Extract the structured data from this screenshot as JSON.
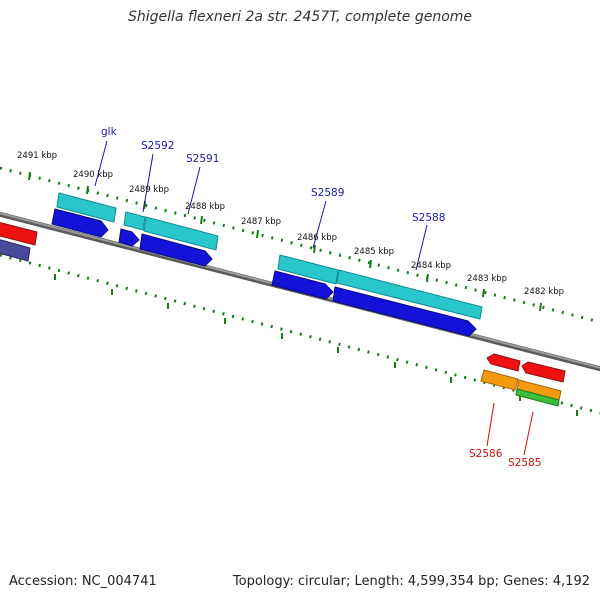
{
  "title": "Shigella flexneri 2a str. 2457T, complete genome",
  "footer": {
    "accession": "Accession: NC_004741",
    "summary": "Topology: circular; Length: 4,599,354 bp; Genes: 4,192"
  },
  "colors": {
    "backbone": "#8c8c8c",
    "tick": "#1a7a1a",
    "cyan": "#29c6cc",
    "blue": "#1212d8",
    "red": "#ee1111",
    "orange": "#f39a10",
    "green": "#3cc03c",
    "purple": "#4a4a9c",
    "label_blue": "#1a1aa8",
    "label_red": "#cc1111"
  },
  "ruler": [
    "2491 kbp",
    "2490 kbp",
    "2489 kbp",
    "2488 kbp",
    "2487 kbp",
    "2486 kbp",
    "2485 kbp",
    "2484 kbp",
    "2483 kbp",
    "2482 kbp"
  ],
  "genes": [
    "glk",
    "S2592",
    "S2591",
    "S2589",
    "S2588",
    "S2586",
    "S2585"
  ]
}
